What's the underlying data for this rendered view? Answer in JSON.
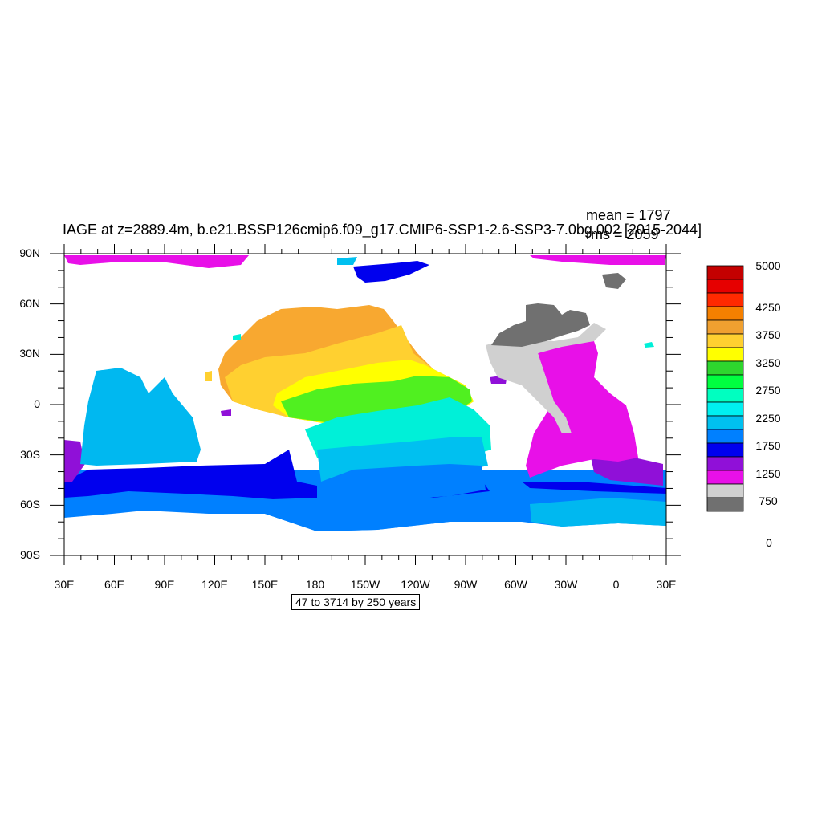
{
  "title": "IAGE at z=2889.4m, b.e21.BSSP126cmip6.f09_g17.CMIP6-SSP1-2.6-SSP3-7.0bg.002 [2015-2044]",
  "stats": {
    "mean": "mean = 1797",
    "rms": "rms = 2059"
  },
  "info_box": "47 to 3714 by 250 years",
  "axes": {
    "lat_labels": [
      "90N",
      "60N",
      "30N",
      "0",
      "30S",
      "60S",
      "90S"
    ],
    "lon_labels": [
      "30E",
      "60E",
      "90E",
      "120E",
      "150E",
      "180",
      "150W",
      "120W",
      "90W",
      "60W",
      "30W",
      "0",
      "30E"
    ]
  },
  "colorbar": {
    "labels": [
      "5000",
      "4250",
      "3750",
      "3250",
      "2750",
      "2250",
      "1750",
      "1250",
      "750",
      "0"
    ],
    "colors_top_to_bottom": [
      "#c40000",
      "#e60000",
      "#ff2a00",
      "#f58000",
      "#f0a030",
      "#ffd030",
      "#ffff00",
      "#2ed62e",
      "#00ff40",
      "#00ffc0",
      "#00f0f0",
      "#00c0f0",
      "#0080ff",
      "#0000ee",
      "#9010d8",
      "#e810e8",
      "#d0d0d0",
      "#707070"
    ]
  },
  "map": {
    "land_color": "#ffffff",
    "ocean_regions": [
      {
        "name": "arctic-ocean",
        "color": "#e810e8"
      },
      {
        "name": "north-pacific",
        "color": "#f8a830"
      },
      {
        "name": "subtropical-pacific",
        "color": "#ffd030"
      },
      {
        "name": "tropical-pacific",
        "color": "#ffff00"
      },
      {
        "name": "equatorial-pacific",
        "color": "#50f020"
      },
      {
        "name": "south-pacific",
        "color": "#00f0d8"
      },
      {
        "name": "indian-ocean",
        "color": "#00b8f0"
      },
      {
        "name": "southern-ocean",
        "color": "#0080ff"
      },
      {
        "name": "circumpolar-band",
        "color": "#0000ee"
      },
      {
        "name": "atlantic-ocean",
        "color": "#e810e8"
      },
      {
        "name": "north-atlantic",
        "color": "#d0d0d0"
      },
      {
        "name": "labrador-sea",
        "color": "#707070"
      }
    ]
  }
}
